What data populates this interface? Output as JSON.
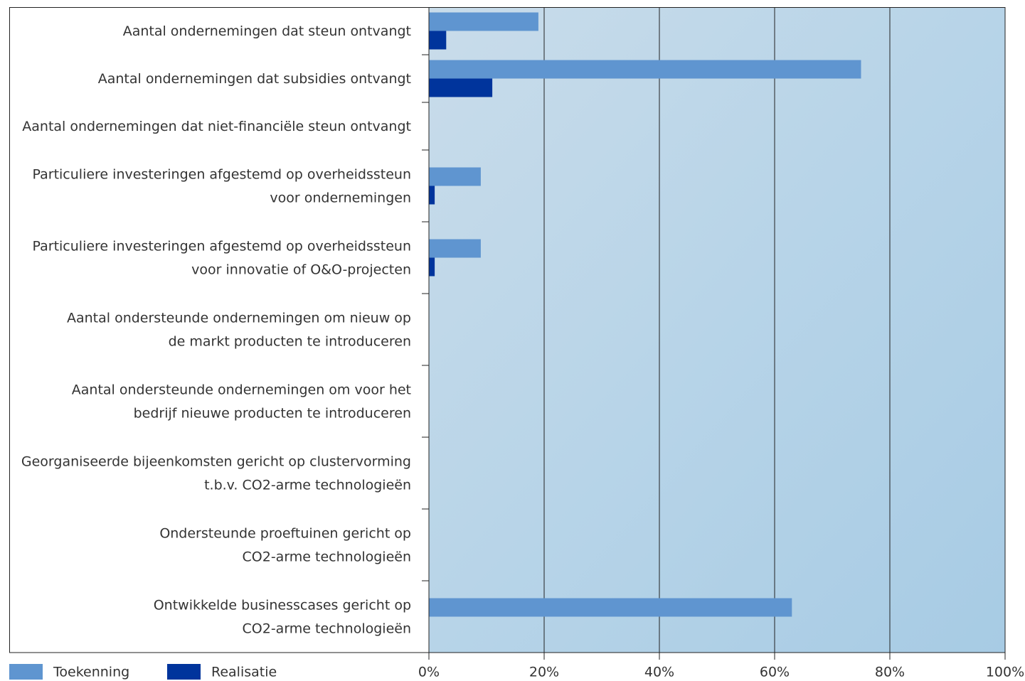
{
  "chart_data": {
    "type": "hbar",
    "categories": [
      [
        "Aantal ondernemingen dat steun ontvangt"
      ],
      [
        "Aantal ondernemingen dat subsidies ontvangt"
      ],
      [
        "Aantal ondernemingen dat niet-financiële steun ontvangt"
      ],
      [
        "Particuliere investeringen afgestemd op overheidssteun",
        "voor ondernemingen"
      ],
      [
        "Particuliere investeringen afgestemd op overheidssteun",
        "voor innovatie of O&O-projecten"
      ],
      [
        "Aantal ondersteunde ondernemingen om nieuw op",
        "de markt producten te introduceren"
      ],
      [
        "Aantal ondersteunde ondernemingen om voor het",
        "bedrijf nieuwe producten te introduceren"
      ],
      [
        "Georganiseerde bijeenkomsten gericht op clustervorming",
        "t.b.v. CO2-arme technologieën"
      ],
      [
        "Ondersteunde proeftuinen gericht op",
        "CO2-arme technologieën"
      ],
      [
        "Ontwikkelde businesscases gericht op",
        "CO2-arme technologieën"
      ]
    ],
    "series": [
      {
        "name": "Toekenning",
        "color": "#5f95d0",
        "values": [
          19,
          75,
          0,
          9,
          9,
          0,
          0,
          0,
          0,
          63
        ]
      },
      {
        "name": "Realisatie",
        "color": "#00349c",
        "values": [
          3,
          11,
          0,
          1,
          1,
          0,
          0,
          0,
          0,
          0
        ]
      }
    ],
    "xlim": [
      0,
      100
    ],
    "xticks": [
      {
        "value": 0,
        "label": "0%"
      },
      {
        "value": 20,
        "label": "20%"
      },
      {
        "value": 40,
        "label": "40%"
      },
      {
        "value": 60,
        "label": "60%"
      },
      {
        "value": 80,
        "label": "80%"
      },
      {
        "value": 100,
        "label": "100%"
      }
    ],
    "grid": true
  }
}
